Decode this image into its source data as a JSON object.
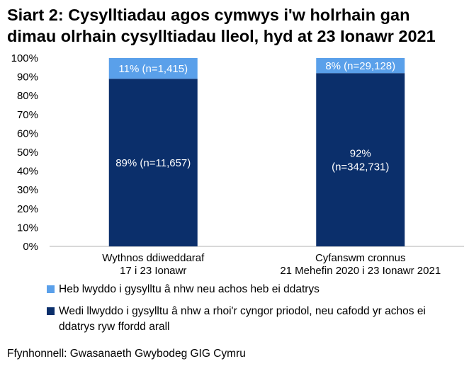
{
  "title": {
    "line1": "Siart 2: Cysylltiadau agos cymwys i'w holrhain gan",
    "line2": "dimau olrhain cysylltiadau lleol, hyd at 23 Ionawr 2021"
  },
  "colors": {
    "series_succeeded": "#0b2f6b",
    "series_failed": "#5aa0ea",
    "axis": "#b0b0b0",
    "grid": "#d9d9d9"
  },
  "chart_data": {
    "type": "bar",
    "stacked": true,
    "percent": true,
    "categories": [
      [
        "Wythnos ddiweddaraf",
        "17 i 23 Ionawr"
      ],
      [
        "Cyfanswm cronnus",
        "21 Mehefin 2020 i 23 Ionawr 2021"
      ]
    ],
    "ylim": [
      0,
      100
    ],
    "yticks": [
      "0%",
      "10%",
      "20%",
      "30%",
      "40%",
      "50%",
      "60%",
      "70%",
      "80%",
      "90%",
      "100%"
    ],
    "grid": false,
    "legend_position": "bottom",
    "series": [
      {
        "name": "Wedi llwyddo i gysylltu â nhw a rhoi'r cyngor priodol, neu cafodd yr achos ei ddatrys ryw ffordd arall",
        "values": [
          89,
          92
        ],
        "labels": [
          [
            "89% (n=11,657)"
          ],
          [
            "92%",
            "(n=342,731)"
          ]
        ]
      },
      {
        "name": "Heb lwyddo i gysylltu â nhw neu achos heb ei ddatrys",
        "values": [
          11,
          8
        ],
        "labels": [
          [
            "11% (n=1,415)"
          ],
          [
            "8% (n=29,128)"
          ]
        ]
      }
    ]
  },
  "legend": {
    "failed_label": "Heb lwyddo i gysylltu â nhw neu achos heb ei ddatrys",
    "succeeded_label": "Wedi llwyddo i gysylltu â nhw a rhoi'r cyngor priodol, neu cafodd yr achos ei ddatrys ryw ffordd arall"
  },
  "source": "Ffynhonnell: Gwasanaeth Gwybodeg GIG Cymru"
}
